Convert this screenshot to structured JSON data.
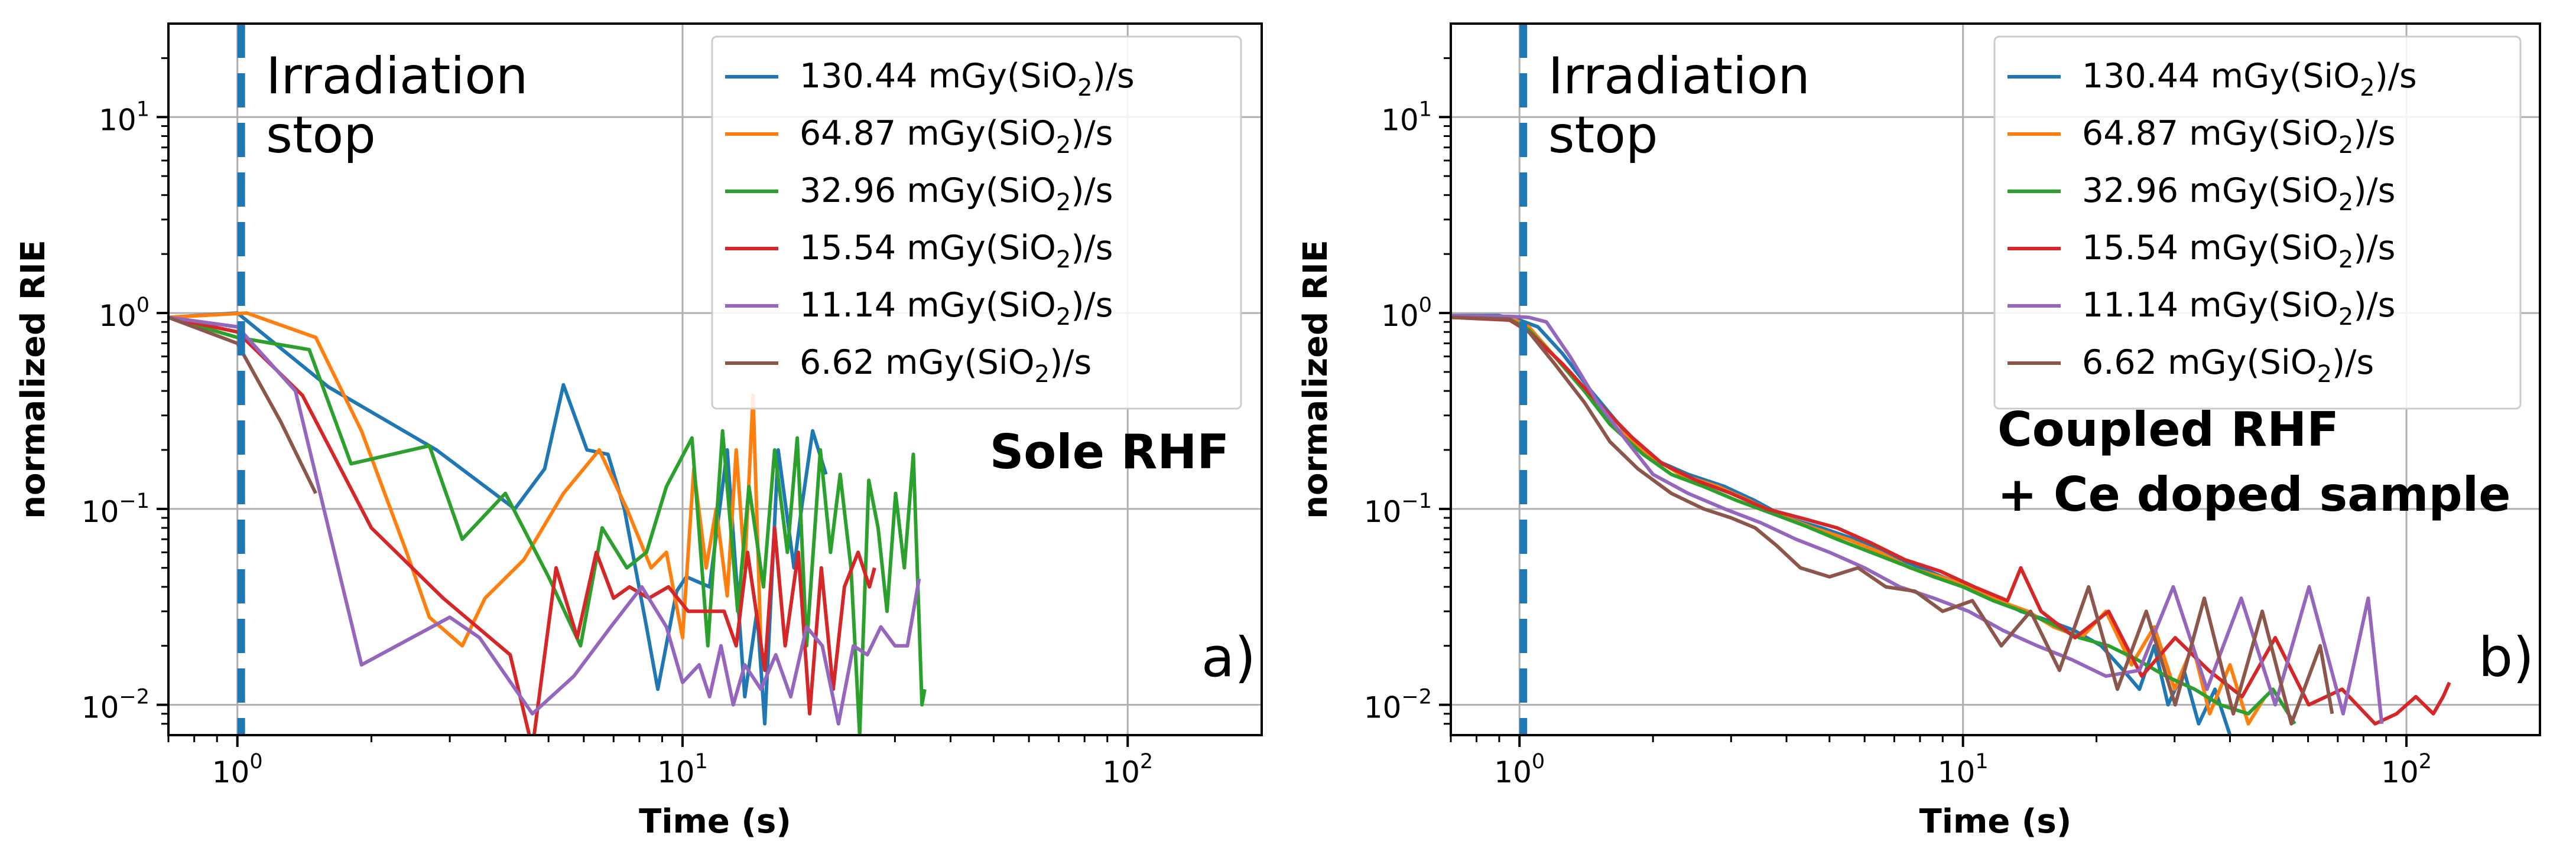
{
  "figure": {
    "panels": [
      {
        "annotation": "Irradiation stop",
        "annotation_lines": [
          "Irradiation",
          "stop"
        ],
        "corner_lines": [
          "Sole RHF"
        ],
        "panel_label": "a)"
      },
      {
        "annotation": "Irradiation stop",
        "annotation_lines": [
          "Irradiation",
          "stop"
        ],
        "corner_lines": [
          "Coupled RHF",
          "+ Ce doped sample"
        ],
        "panel_label": "b)"
      }
    ]
  },
  "chart_data": [
    {
      "type": "line",
      "title": "",
      "xlabel": "Time (s)",
      "ylabel": "normalized RIE",
      "xscale": "log",
      "yscale": "log",
      "xlim": [
        0.7,
        200
      ],
      "ylim": [
        0.007,
        30
      ],
      "xticks": [
        {
          "base": "10",
          "exp": "0"
        },
        {
          "base": "10",
          "exp": "1"
        },
        {
          "base": "10",
          "exp": "2"
        }
      ],
      "yticks": [
        {
          "base": "10",
          "exp": "−2"
        },
        {
          "base": "10",
          "exp": "−1"
        },
        {
          "base": "10",
          "exp": "0"
        },
        {
          "base": "10",
          "exp": "1"
        }
      ],
      "grid": true,
      "vline": {
        "x": 1.02,
        "style": "dashed",
        "color": "#1f77b4"
      },
      "legend_position": "top-right",
      "series": [
        {
          "name": "130.44 mGy(SiO₂)/s",
          "rate": "130.44",
          "unit_pre": "mGy(SiO",
          "unit_sub": "2",
          "unit_post": ")/s",
          "color": "#1f77b4",
          "x": [
            0.7,
            1.0,
            1.6,
            2.8,
            4.2,
            4.9,
            5.4,
            6.1,
            6.8,
            7.4,
            8.3,
            8.8,
            9.7,
            10.2,
            11.5,
            12.6,
            13.8,
            14.7,
            15.3,
            16.4,
            17.8,
            18.5,
            19.6,
            21.0
          ],
          "y": [
            0.95,
            1.0,
            0.42,
            0.2,
            0.1,
            0.16,
            0.43,
            0.2,
            0.19,
            0.1,
            0.025,
            0.012,
            0.038,
            0.045,
            0.04,
            0.2,
            0.011,
            0.03,
            0.008,
            0.2,
            0.05,
            0.1,
            0.25,
            0.15
          ]
        },
        {
          "name": "64.87 mGy(SiO₂)/s",
          "rate": "64.87",
          "unit_pre": "mGy(SiO",
          "unit_sub": "2",
          "unit_post": ")/s",
          "color": "#ff7f0e",
          "x": [
            0.7,
            1.05,
            1.5,
            1.9,
            2.4,
            2.7,
            3.2,
            3.6,
            4.4,
            5.4,
            6.5,
            7.5,
            8.5,
            9.2,
            10.0,
            10.6,
            11.3,
            11.9,
            12.6,
            13.2,
            13.8,
            14.4,
            15.0
          ],
          "y": [
            0.95,
            1.0,
            0.75,
            0.25,
            0.06,
            0.028,
            0.02,
            0.035,
            0.055,
            0.12,
            0.2,
            0.1,
            0.05,
            0.06,
            0.022,
            0.16,
            0.05,
            0.1,
            0.036,
            0.2,
            0.05,
            0.38,
            0.02
          ]
        },
        {
          "name": "32.96 mGy(SiO₂)/s",
          "rate": "32.96",
          "unit_pre": "mGy(SiO",
          "unit_sub": "2",
          "unit_post": ")/s",
          "color": "#2ca02c",
          "x": [
            0.7,
            1.0,
            1.45,
            1.8,
            2.7,
            3.2,
            4.0,
            5.0,
            5.9,
            6.6,
            7.5,
            8.3,
            9.2,
            10.5,
            11.4,
            12.3,
            13.3,
            14.1,
            15.2,
            16.1,
            17.2,
            18.1,
            19.0,
            20.4,
            21.5,
            22.6,
            23.9,
            25.0,
            26.2,
            27.5,
            28.8,
            30.1,
            31.5,
            33.0,
            34.5,
            35.0
          ],
          "y": [
            0.95,
            0.75,
            0.65,
            0.17,
            0.21,
            0.07,
            0.12,
            0.045,
            0.02,
            0.08,
            0.05,
            0.06,
            0.13,
            0.23,
            0.02,
            0.25,
            0.03,
            0.13,
            0.04,
            0.2,
            0.06,
            0.23,
            0.02,
            0.2,
            0.06,
            0.15,
            0.05,
            0.007,
            0.14,
            0.08,
            0.03,
            0.12,
            0.05,
            0.19,
            0.01,
            0.012
          ]
        },
        {
          "name": "15.54 mGy(SiO₂)/s",
          "rate": "15.54",
          "unit_pre": "mGy(SiO",
          "unit_sub": "2",
          "unit_post": ")/s",
          "color": "#d62728",
          "x": [
            0.7,
            1.0,
            1.4,
            2.0,
            2.9,
            4.1,
            4.6,
            5.2,
            5.8,
            6.4,
            7.0,
            7.6,
            8.4,
            9.3,
            10.3,
            11.3,
            12.4,
            13.2,
            14.0,
            15.3,
            16.1,
            17.0,
            18.2,
            19.3,
            20.5,
            21.8,
            23.1,
            24.8,
            26.3,
            27.0
          ],
          "y": [
            0.95,
            0.8,
            0.38,
            0.08,
            0.035,
            0.018,
            0.006,
            0.05,
            0.022,
            0.06,
            0.035,
            0.04,
            0.035,
            0.04,
            0.03,
            0.03,
            0.03,
            0.02,
            0.06,
            0.015,
            0.08,
            0.02,
            0.06,
            0.009,
            0.05,
            0.012,
            0.04,
            0.06,
            0.04,
            0.05
          ]
        },
        {
          "name": "11.14 mGy(SiO₂)/s",
          "rate": "11.14",
          "unit_pre": "mGy(SiO",
          "unit_sub": "2",
          "unit_post": ")/s",
          "color": "#9467bd",
          "x": [
            0.7,
            1.0,
            1.35,
            1.9,
            3.0,
            3.5,
            4.6,
            5.7,
            6.9,
            8.1,
            9.2,
            10.0,
            10.9,
            11.5,
            12.2,
            13.0,
            13.8,
            15.0,
            16.2,
            17.5,
            19.0,
            20.6,
            22.4,
            24.2,
            26.0,
            27.9,
            30.0,
            32.0,
            34.0
          ],
          "y": [
            0.95,
            0.85,
            0.4,
            0.016,
            0.028,
            0.022,
            0.009,
            0.014,
            0.025,
            0.04,
            0.025,
            0.013,
            0.016,
            0.011,
            0.02,
            0.01,
            0.016,
            0.012,
            0.018,
            0.011,
            0.025,
            0.02,
            0.008,
            0.02,
            0.018,
            0.025,
            0.02,
            0.02,
            0.044
          ]
        },
        {
          "name": "6.62 mGy(SiO₂)/s",
          "rate": "6.62",
          "unit_pre": "mGy(SiO",
          "unit_sub": "2",
          "unit_post": ")/s",
          "color": "#8c564b",
          "x": [
            0.7,
            1.0,
            1.25,
            1.5
          ],
          "y": [
            0.95,
            0.7,
            0.28,
            0.12
          ]
        }
      ]
    },
    {
      "type": "line",
      "title": "",
      "xlabel": "Time (s)",
      "ylabel": "normalized RIE",
      "xscale": "log",
      "yscale": "log",
      "xlim": [
        0.7,
        200
      ],
      "ylim": [
        0.007,
        30
      ],
      "xticks": [
        {
          "base": "10",
          "exp": "0"
        },
        {
          "base": "10",
          "exp": "1"
        },
        {
          "base": "10",
          "exp": "2"
        }
      ],
      "yticks": [
        {
          "base": "10",
          "exp": "−2"
        },
        {
          "base": "10",
          "exp": "−1"
        },
        {
          "base": "10",
          "exp": "0"
        },
        {
          "base": "10",
          "exp": "1"
        }
      ],
      "grid": true,
      "vline": {
        "x": 1.02,
        "style": "dashed",
        "color": "#1f77b4"
      },
      "legend_position": "top-right",
      "series": [
        {
          "name": "130.44 mGy(SiO₂)/s",
          "rate": "130.44",
          "unit_pre": "mGy(SiO",
          "unit_sub": "2",
          "unit_post": ")/s",
          "color": "#1f77b4",
          "x": [
            0.7,
            0.9,
            1.0,
            1.1,
            1.25,
            1.45,
            1.7,
            2.0,
            2.4,
            2.9,
            3.4,
            4.0,
            4.8,
            5.7,
            6.6,
            7.7,
            9.0,
            10.3,
            11.8,
            13.5,
            15.5,
            17.8,
            20.5,
            23.0,
            25.0,
            27.0,
            29.0,
            31.5,
            34.0,
            37.0,
            40.0
          ],
          "y": [
            0.97,
            0.97,
            0.92,
            0.85,
            0.62,
            0.4,
            0.26,
            0.18,
            0.15,
            0.13,
            0.11,
            0.09,
            0.08,
            0.07,
            0.06,
            0.052,
            0.045,
            0.04,
            0.035,
            0.03,
            0.027,
            0.024,
            0.02,
            0.015,
            0.012,
            0.02,
            0.01,
            0.015,
            0.008,
            0.012,
            0.007
          ]
        },
        {
          "name": "64.87 mGy(SiO₂)/s",
          "rate": "64.87",
          "unit_pre": "mGy(SiO",
          "unit_sub": "2",
          "unit_post": ")/s",
          "color": "#ff7f0e",
          "x": [
            0.7,
            0.95,
            1.05,
            1.2,
            1.4,
            1.65,
            1.95,
            2.3,
            2.8,
            3.3,
            3.9,
            4.6,
            5.5,
            6.5,
            7.6,
            8.9,
            10.4,
            12.0,
            14.0,
            16.0,
            18.5,
            21.0,
            24.0,
            27.0,
            30.0,
            33.0,
            36.0,
            40.0,
            44.0,
            48.0
          ],
          "y": [
            0.96,
            0.95,
            0.85,
            0.6,
            0.4,
            0.26,
            0.19,
            0.15,
            0.13,
            0.11,
            0.092,
            0.08,
            0.07,
            0.06,
            0.05,
            0.045,
            0.04,
            0.034,
            0.03,
            0.025,
            0.022,
            0.03,
            0.016,
            0.025,
            0.012,
            0.02,
            0.009,
            0.016,
            0.008,
            0.011
          ]
        },
        {
          "name": "32.96 mGy(SiO₂)/s",
          "rate": "32.96",
          "unit_pre": "mGy(SiO",
          "unit_sub": "2",
          "unit_post": ")/s",
          "color": "#2ca02c",
          "x": [
            0.7,
            0.95,
            1.05,
            1.2,
            1.4,
            1.6,
            1.9,
            2.2,
            2.6,
            3.1,
            3.7,
            4.4,
            5.2,
            6.2,
            7.3,
            8.6,
            10.0,
            11.7,
            13.6,
            15.8,
            18.3,
            21.3,
            24.7,
            28.7,
            33.3,
            38.0,
            44.0,
            50.0,
            56.0
          ],
          "y": [
            0.95,
            0.93,
            0.82,
            0.6,
            0.4,
            0.27,
            0.19,
            0.15,
            0.13,
            0.11,
            0.095,
            0.082,
            0.07,
            0.06,
            0.052,
            0.045,
            0.04,
            0.034,
            0.03,
            0.026,
            0.022,
            0.02,
            0.017,
            0.014,
            0.012,
            0.01,
            0.009,
            0.012,
            0.008
          ]
        },
        {
          "name": "15.54 mGy(SiO₂)/s",
          "rate": "15.54",
          "unit_pre": "mGy(SiO",
          "unit_sub": "2",
          "unit_post": ")/s",
          "color": "#d62728",
          "x": [
            0.7,
            0.95,
            1.05,
            1.25,
            1.5,
            1.8,
            2.1,
            2.5,
            3.0,
            3.6,
            4.3,
            5.2,
            6.2,
            7.4,
            8.9,
            10.6,
            12.6,
            13.5,
            15.0,
            17.9,
            21.3,
            25.3,
            30.1,
            35.8,
            42.6,
            50.6,
            60.2,
            71.6,
            85.0,
            95.0,
            105.0,
            115.0,
            121.0,
            125.0
          ],
          "y": [
            0.95,
            0.92,
            0.8,
            0.55,
            0.35,
            0.23,
            0.17,
            0.14,
            0.12,
            0.1,
            0.09,
            0.08,
            0.067,
            0.055,
            0.048,
            0.04,
            0.034,
            0.05,
            0.03,
            0.022,
            0.03,
            0.014,
            0.022,
            0.015,
            0.011,
            0.022,
            0.01,
            0.012,
            0.008,
            0.009,
            0.011,
            0.009,
            0.011,
            0.013
          ]
        },
        {
          "name": "11.14 mGy(SiO₂)/s",
          "rate": "11.14",
          "unit_pre": "mGy(SiO",
          "unit_sub": "2",
          "unit_post": ")/s",
          "color": "#9467bd",
          "x": [
            0.7,
            0.95,
            1.05,
            1.15,
            1.3,
            1.5,
            1.75,
            2.0,
            2.4,
            2.9,
            3.5,
            4.2,
            5.0,
            6.0,
            7.2,
            8.6,
            10.3,
            12.3,
            14.7,
            17.6,
            21.0,
            25.0,
            29.8,
            35.5,
            42.4,
            50.6,
            60.3,
            72.0,
            82.0,
            88.0
          ],
          "y": [
            0.97,
            0.96,
            0.95,
            0.9,
            0.6,
            0.35,
            0.22,
            0.15,
            0.12,
            0.1,
            0.085,
            0.07,
            0.06,
            0.05,
            0.04,
            0.035,
            0.03,
            0.024,
            0.02,
            0.017,
            0.014,
            0.015,
            0.04,
            0.012,
            0.035,
            0.01,
            0.04,
            0.009,
            0.035,
            0.008
          ]
        },
        {
          "name": "6.62 mGy(SiO₂)/s",
          "rate": "6.62",
          "unit_pre": "mGy(SiO",
          "unit_sub": "2",
          "unit_post": ")/s",
          "color": "#8c564b",
          "x": [
            0.7,
            0.95,
            1.05,
            1.2,
            1.4,
            1.6,
            1.85,
            2.2,
            2.6,
            3.0,
            3.4,
            3.8,
            4.3,
            5.0,
            5.8,
            6.7,
            7.8,
            9.0,
            10.5,
            12.2,
            14.2,
            16.5,
            19.2,
            22.3,
            25.9,
            30.1,
            35.0,
            40.7,
            47.3,
            55.0,
            63.9,
            68.0
          ],
          "y": [
            0.95,
            0.93,
            0.8,
            0.55,
            0.35,
            0.22,
            0.16,
            0.12,
            0.1,
            0.09,
            0.08,
            0.065,
            0.05,
            0.045,
            0.05,
            0.04,
            0.038,
            0.03,
            0.034,
            0.02,
            0.03,
            0.015,
            0.04,
            0.012,
            0.03,
            0.01,
            0.035,
            0.009,
            0.03,
            0.008,
            0.02,
            0.009
          ]
        }
      ]
    }
  ]
}
